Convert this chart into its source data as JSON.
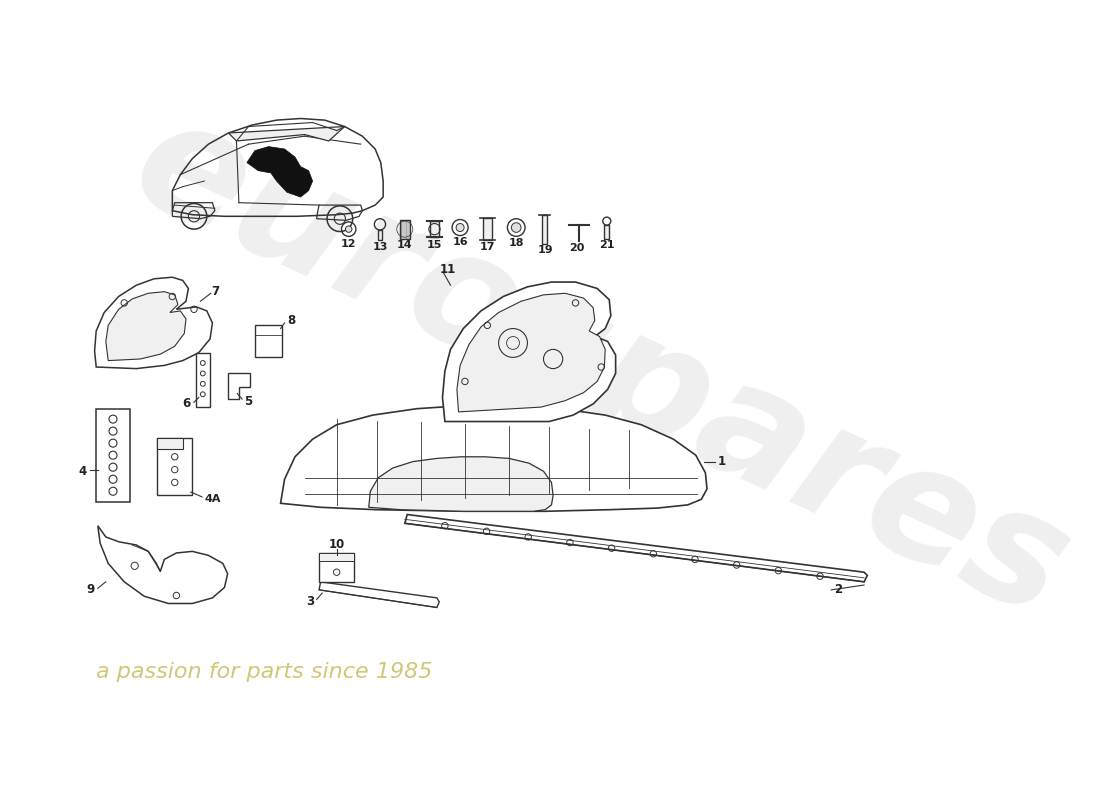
{
  "background_color": "#ffffff",
  "line_color": "#333333",
  "fill_white": "#ffffff",
  "fill_light": "#f0f0f0",
  "fill_mid": "#e0e0e0",
  "wm_gray": "#c8c8c8",
  "wm_yellow": "#c8be60",
  "wm_text1": "eurospares",
  "wm_text2": "a passion for parts since 1985",
  "figsize": [
    11.0,
    8.0
  ],
  "dpi": 100
}
